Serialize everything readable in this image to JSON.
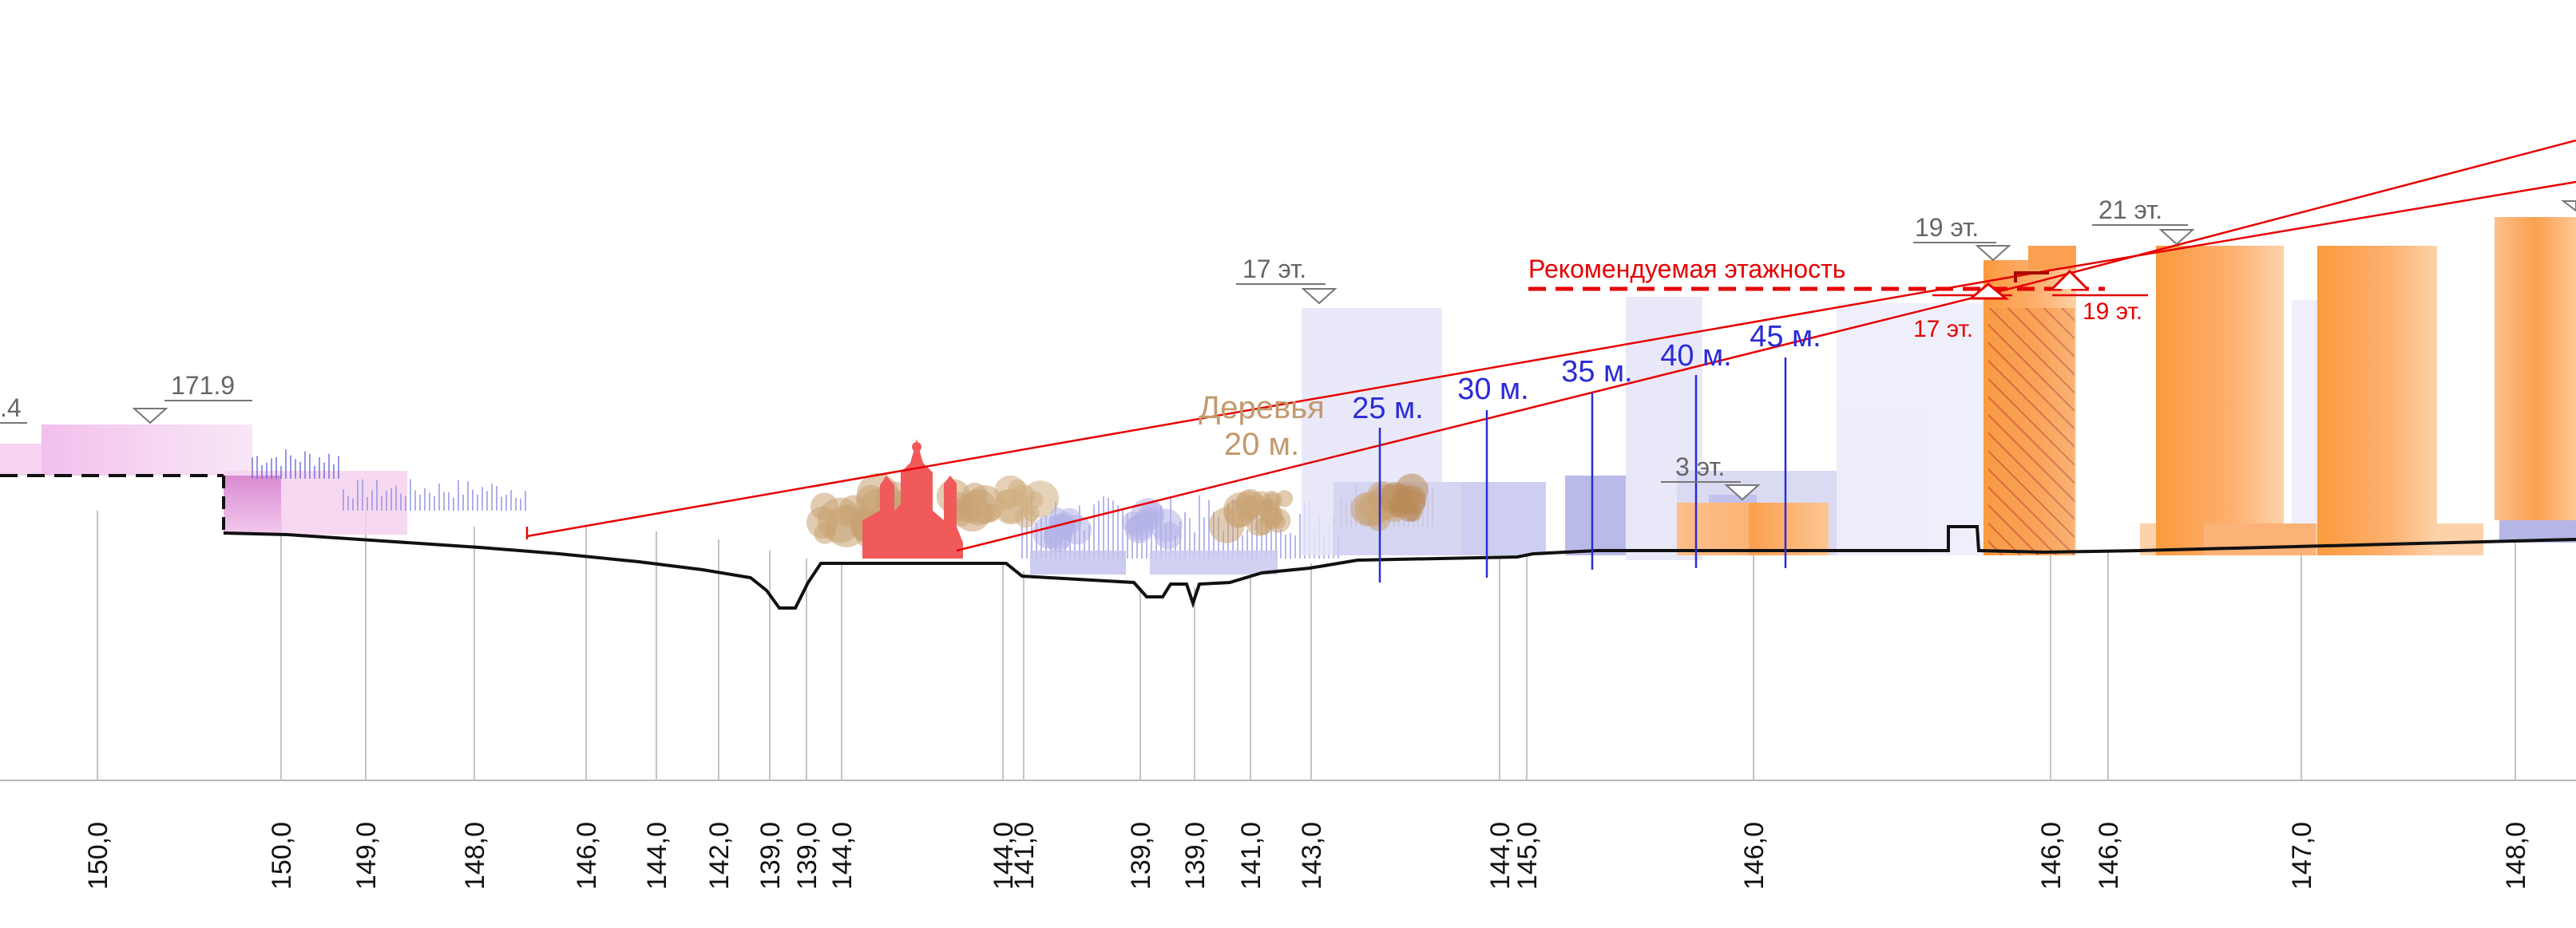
{
  "colors": {
    "red": "#e60000",
    "blue": "#2b2bd6",
    "tan": "#b98b57",
    "gray": "#666666",
    "pink": "#e9a8e0",
    "orange": "#fb9a3e",
    "lavender": "#c9c9f0"
  },
  "recommended_label": "Рекомендуемая этажность",
  "trees_label": "Деревья",
  "trees_height": "20 м.",
  "distance_labels": [
    "25 м.",
    "30 м.",
    "35 м.",
    "40 м.",
    "45 м."
  ],
  "floor_markers": [
    "17 эт.",
    "19 эт.",
    "21 эт.",
    "3 эт."
  ],
  "height_markers": [
    "171.9",
    ".4"
  ],
  "sight_labels": [
    "17 эт.",
    "19 эт."
  ],
  "elevations": [
    "150,0",
    "150,0",
    "149,0",
    "148,0",
    "146,0",
    "144,0",
    "142,0",
    "139,0",
    "139,0",
    "144,0",
    "144,0",
    "141,0",
    "139,0",
    "139,0",
    "141,0",
    "143,0",
    "144,0",
    "145,0",
    "146,0",
    "146,0",
    "146,0",
    "147,0",
    "148,0"
  ]
}
